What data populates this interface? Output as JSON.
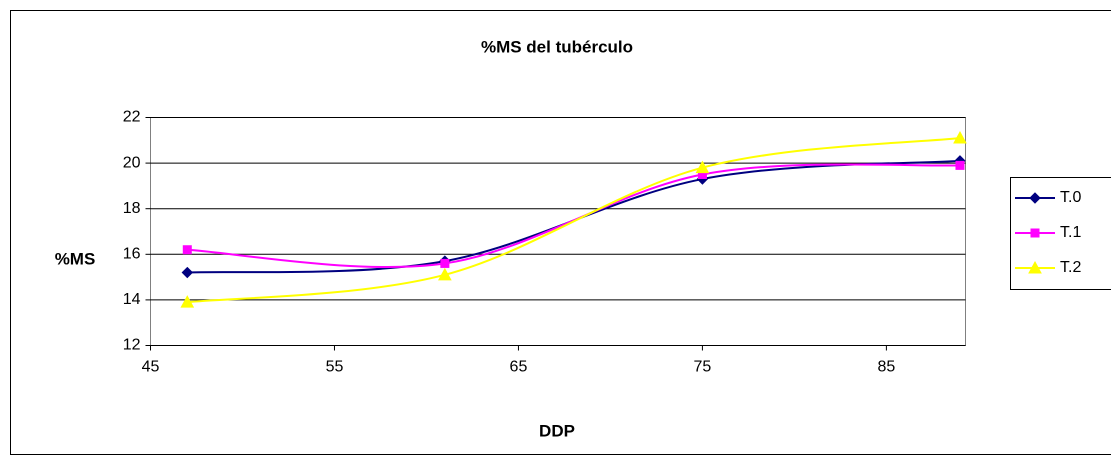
{
  "chart_data": {
    "type": "line",
    "title": "%MS del tubérculo",
    "x_label": "DDP",
    "y_label": "%MS",
    "x": [
      47,
      61,
      75,
      89
    ],
    "series": [
      {
        "name": "T.0",
        "color": "#000080",
        "marker": "diamond",
        "values": [
          15.2,
          15.7,
          19.3,
          20.1
        ]
      },
      {
        "name": "T.1",
        "color": "#ff00ff",
        "marker": "square",
        "values": [
          16.2,
          15.6,
          19.5,
          19.9
        ]
      },
      {
        "name": "T.2",
        "color": "#ffff00",
        "marker": "triangle",
        "values": [
          13.9,
          15.1,
          19.8,
          21.1
        ]
      }
    ],
    "xlim": [
      45,
      89.3
    ],
    "xticks": [
      45,
      55,
      65,
      75,
      85
    ],
    "ylim": [
      12,
      22
    ],
    "yticks": [
      12,
      14,
      16,
      18,
      20,
      22
    ],
    "grid": true,
    "smooth": true,
    "legend": "right"
  }
}
